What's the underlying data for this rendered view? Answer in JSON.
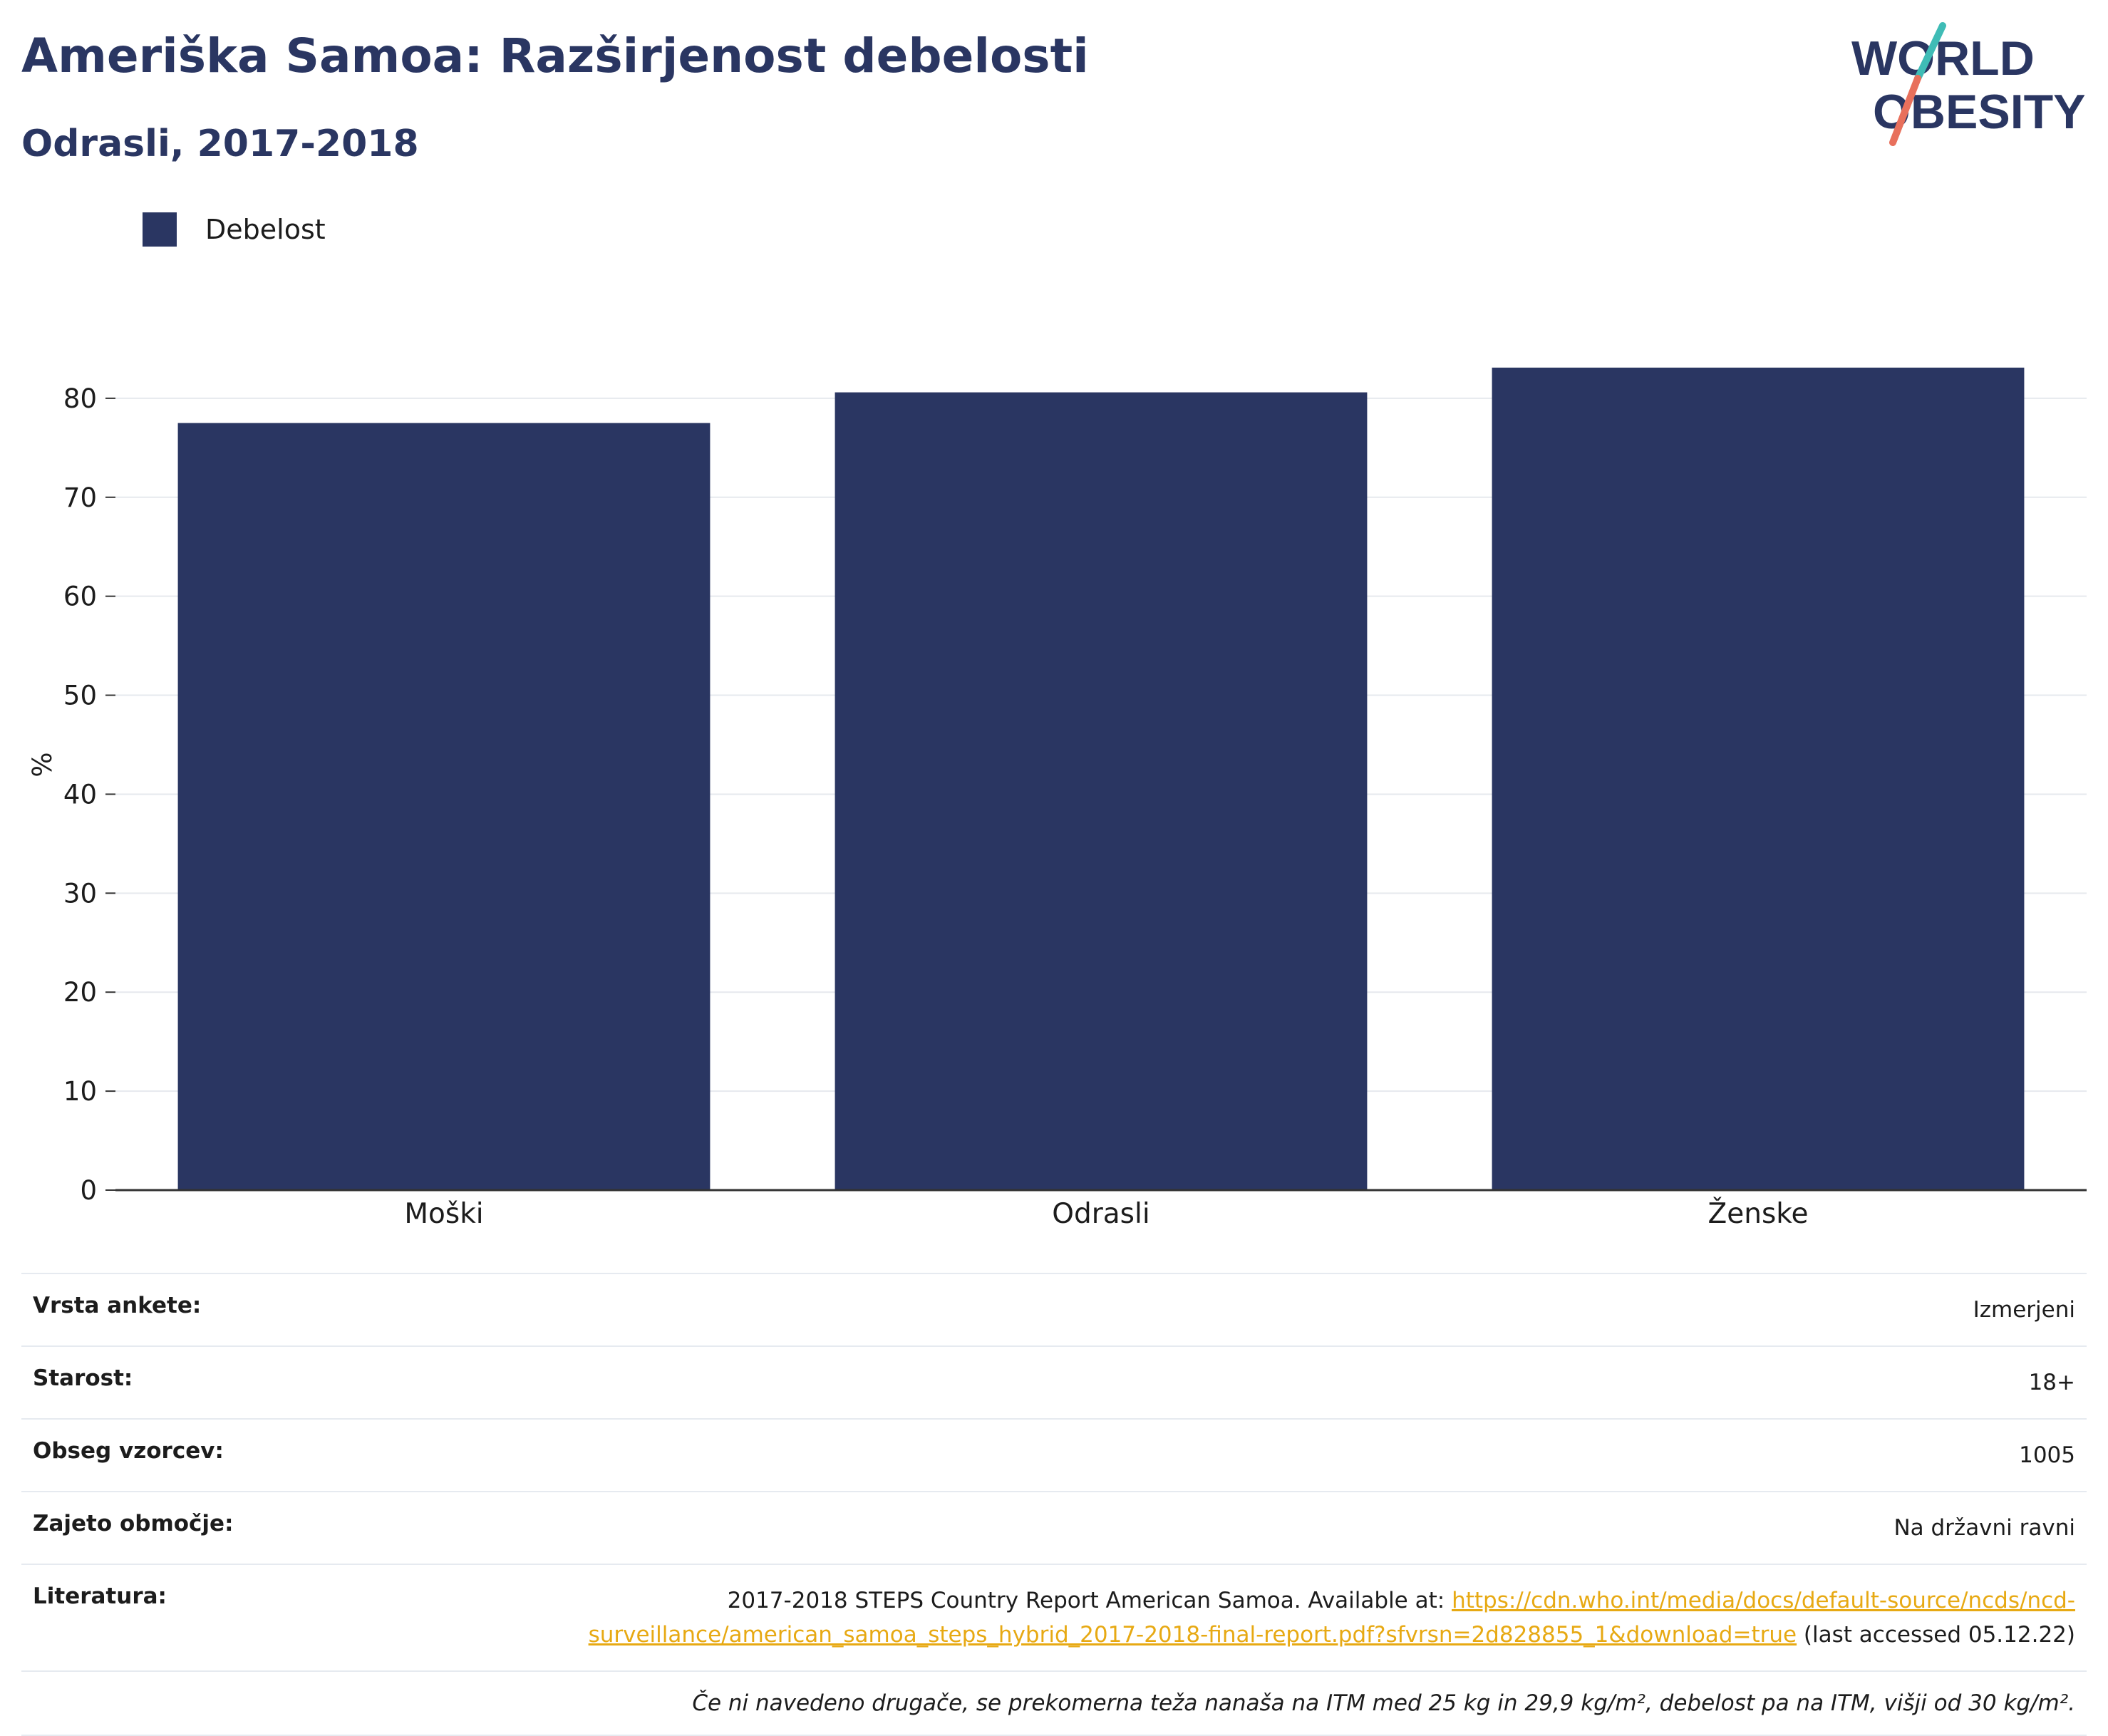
{
  "header": {
    "title": "Ameriška Samoa: Razširjenost debelosti",
    "subtitle": "Odrasli, 2017-2018"
  },
  "logo": {
    "line1": "WORLD",
    "line2": "OBESITY"
  },
  "colors": {
    "bar": "#2a3662",
    "accent_teal": "#3fbcb6",
    "accent_coral": "#e8705c",
    "link": "#e7a913"
  },
  "chart_data": {
    "type": "bar",
    "categories": [
      "Moški",
      "Odrasli",
      "Ženske"
    ],
    "series": [
      {
        "name": "Debelost",
        "values": [
          77.5,
          80.6,
          83.1
        ]
      }
    ],
    "ylabel": "%",
    "xlabel": "",
    "ylim": [
      0,
      90
    ],
    "yticks": [
      0,
      10,
      20,
      30,
      40,
      50,
      60,
      70,
      80
    ],
    "grid": true,
    "legend": "top-left"
  },
  "info": {
    "survey_type": {
      "label": "Vrsta ankete:",
      "value": "Izmerjeni"
    },
    "age": {
      "label": "Starost:",
      "value": "18+"
    },
    "sample": {
      "label": "Obseg vzorcev:",
      "value": "1005"
    },
    "coverage": {
      "label": "Zajeto območje:",
      "value": "Na državni ravni"
    },
    "literature": {
      "label": "Literatura:",
      "text_before": "2017-2018 STEPS Country Report American Samoa. Available at: ",
      "link": "https://cdn.who.int/media/docs/default-source/ncds/ncd-surveillance/american_samoa_steps_hybrid_2017-2018-final-report.pdf?sfvrsn=2d828855_1&download=true",
      "link_line1": "https://cdn.who.int/media/docs/default-source/ncds/ncd-",
      "link_line2": "surveillance/american_samoa_steps_hybrid_2017-2018-final-report.pdf?sfvrsn=2d828855_1&download=true",
      "text_after": " (last accessed 05.12.22)"
    },
    "note": "Če ni navedeno drugače, se prekomerna teža nanaša na ITM med 25 kg in 29,9 kg/m², debelost pa na ITM, višji od 30 kg/m²."
  }
}
